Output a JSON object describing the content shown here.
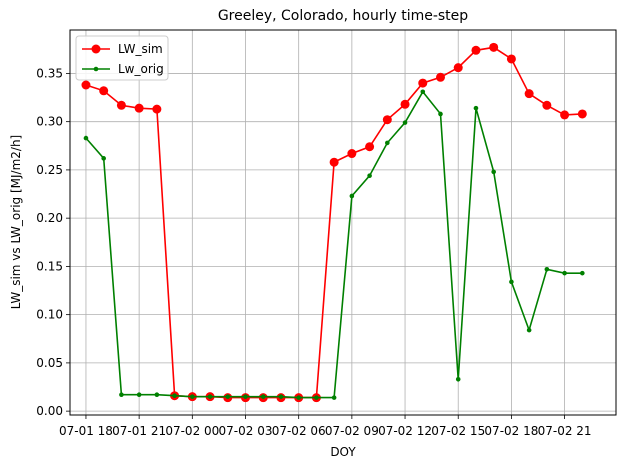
{
  "chart_data": {
    "type": "line",
    "title": "Greeley, Colorado, hourly time-step",
    "xlabel": "DOY",
    "ylabel": "LW_sim vs LW_orig [MJ/m2/h]",
    "x_hours": [
      0,
      1,
      2,
      3,
      4,
      5,
      6,
      7,
      8,
      9,
      10,
      11,
      12,
      13,
      14,
      15,
      16,
      17,
      18,
      19,
      20,
      21,
      22,
      23,
      24,
      25,
      26,
      27,
      28
    ],
    "xlim_hours": [
      -0.9,
      29.9
    ],
    "xticks": [
      {
        "hours": 0,
        "label": "07-01 18"
      },
      {
        "hours": 3,
        "label": "07-01 21"
      },
      {
        "hours": 6,
        "label": "07-02 00"
      },
      {
        "hours": 9,
        "label": "07-02 03"
      },
      {
        "hours": 12,
        "label": "07-02 06"
      },
      {
        "hours": 15,
        "label": "07-02 09"
      },
      {
        "hours": 18,
        "label": "07-02 12"
      },
      {
        "hours": 21,
        "label": "07-02 15"
      },
      {
        "hours": 24,
        "label": "07-02 18"
      },
      {
        "hours": 27,
        "label": "07-02 21"
      }
    ],
    "ylim": [
      -0.004,
      0.395
    ],
    "yticks": [
      "0.00",
      "0.05",
      "0.10",
      "0.15",
      "0.20",
      "0.25",
      "0.30",
      "0.35"
    ],
    "grid": true,
    "legend": "upper left",
    "series": [
      {
        "name": "LW_sim",
        "color": "#ff0000",
        "marker": "circle-large",
        "values": [
          0.338,
          0.332,
          0.317,
          0.314,
          0.313,
          0.016,
          0.015,
          0.015,
          0.014,
          0.014,
          0.014,
          0.014,
          0.014,
          0.014,
          0.258,
          0.267,
          0.274,
          0.302,
          0.318,
          0.34,
          0.346,
          0.356,
          0.374,
          0.377,
          0.365,
          0.329,
          0.317,
          0.307,
          0.308
        ]
      },
      {
        "name": "Lw_orig",
        "color": "#008000",
        "marker": "circle-small",
        "values": [
          0.283,
          0.262,
          0.017,
          0.017,
          0.017,
          0.016,
          0.015,
          0.015,
          0.015,
          0.015,
          0.015,
          0.015,
          0.014,
          0.014,
          0.014,
          0.223,
          0.244,
          0.278,
          0.299,
          0.331,
          0.308,
          0.033,
          0.314,
          0.248,
          0.134,
          0.084,
          0.147,
          0.143,
          0.143
        ]
      }
    ]
  }
}
